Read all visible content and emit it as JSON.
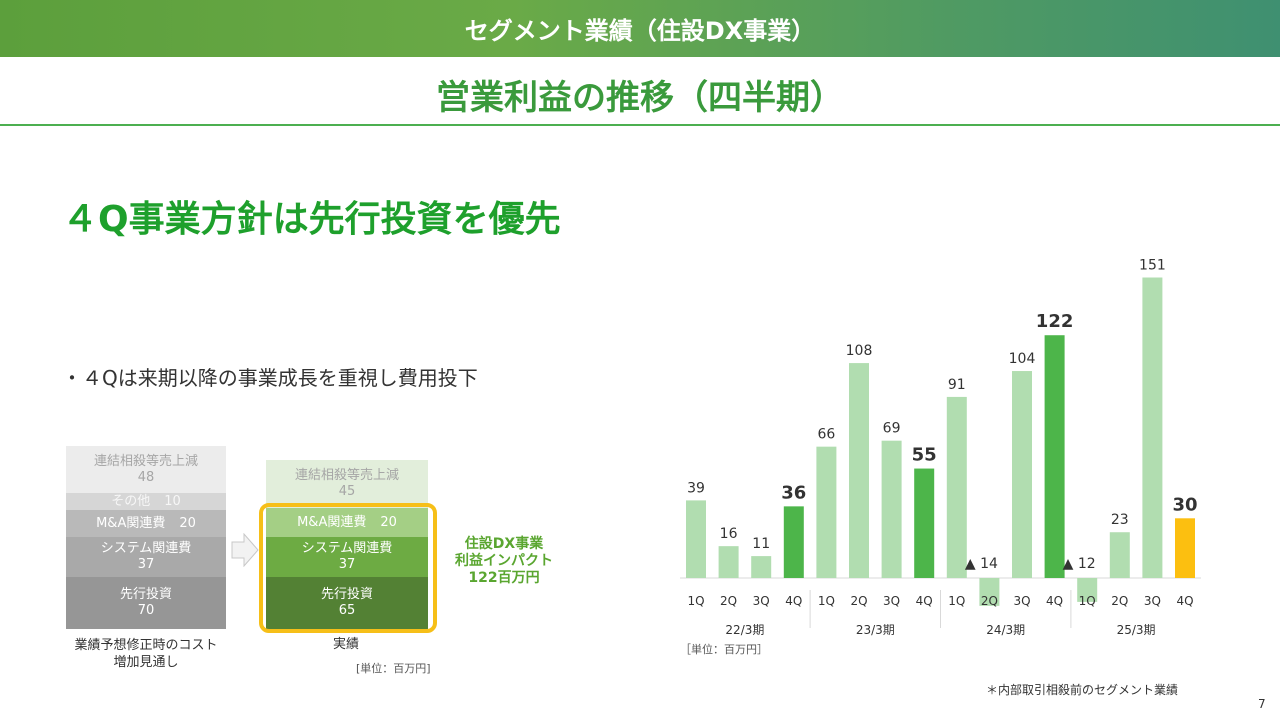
{
  "header": {
    "banner_title": "セグメント業績（住設DX事業）",
    "subtitle": "営業利益の推移（四半期）"
  },
  "headline": "４Q事業方針は先行投資を優先",
  "bullet": "・４Qは来期以降の事業成長を重視し費用投下",
  "breakdown": {
    "left_blocks": [
      {
        "label": "連結相殺等売上減",
        "value": "48"
      },
      {
        "label": "その他",
        "value": "10"
      },
      {
        "label": "M&A関連費",
        "value": "20"
      },
      {
        "label": "システム関連費",
        "value": "37"
      },
      {
        "label": "先行投資",
        "value": "70"
      }
    ],
    "right_blocks": [
      {
        "label": "連結相殺等売上減",
        "value": "45"
      },
      {
        "label": "M&A関連費",
        "value": "20"
      },
      {
        "label": "システム関連費",
        "value": "37"
      },
      {
        "label": "先行投資",
        "value": "65"
      }
    ],
    "left_caption_line1": "業績予想修正時のコスト",
    "left_caption_line2": "増加見通し",
    "right_caption": "実績",
    "impact_line1": "住設DX事業",
    "impact_line2": "利益インパクト",
    "impact_line3": "122百万円",
    "unit": "[単位：百万円]"
  },
  "chart_data": {
    "type": "bar",
    "categories": [
      "1Q",
      "2Q",
      "3Q",
      "4Q",
      "1Q",
      "2Q",
      "3Q",
      "4Q",
      "1Q",
      "2Q",
      "3Q",
      "4Q",
      "1Q",
      "2Q",
      "3Q",
      "4Q"
    ],
    "values": [
      39,
      16,
      11,
      36,
      66,
      108,
      69,
      55,
      91,
      -14,
      104,
      122,
      -12,
      23,
      151,
      30
    ],
    "labels": [
      "39",
      "16",
      "11",
      "36",
      "66",
      "108",
      "69",
      "55",
      "91",
      "▲ 14",
      "104",
      "122",
      "▲ 12",
      "23",
      "151",
      "30"
    ],
    "groups": [
      "22/3期",
      "23/3期",
      "24/3期",
      "25/3期"
    ],
    "colors": {
      "light": "#b1ddb0",
      "dark": "#4db54a",
      "current": "#fcbf10"
    },
    "highlight": [
      3,
      7,
      11,
      15
    ],
    "unit": "［単位：百万円］"
  },
  "footnote": "＊内部取引相殺前のセグメント業績",
  "page_number": "7"
}
